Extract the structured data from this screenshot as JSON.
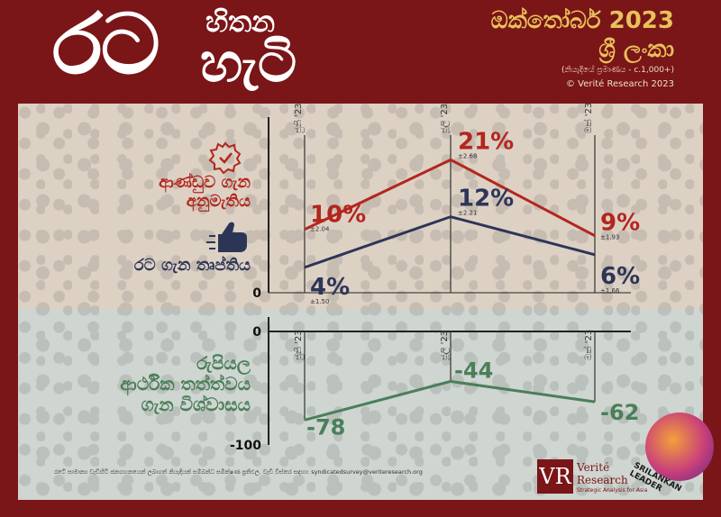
{
  "header": {
    "logo_main": "රට",
    "logo_top": "හිතන",
    "logo_bottom": "හැටි",
    "title": "ඔක්තෝබර් 2023",
    "country": "ශ්‍රී ලංකා",
    "sample": "(නියැදියේ ප්‍රමාණය - c.1,000+)",
    "copyright": "© Verité Research 2023"
  },
  "labels": {
    "approval": "ආණ්ඩුව ගැන අනුමැතිය",
    "approval_line1": "ආණ්ඩුව ගැන",
    "approval_line2": "අනුමැතිය",
    "satisfaction": "රට ගැන තෘප්තිය",
    "economic_line1": "රුපියල",
    "economic_line2": "ආර්ථික තත්ත්වය",
    "economic_line3": "ගැන විශ්වාසය"
  },
  "icons": {
    "approval": "checkmark-badge-icon",
    "satisfaction": "thumbs-up-icon"
  },
  "colors": {
    "approval": "#b3261e",
    "satisfaction": "#2d3557",
    "economic": "#4a7f5a",
    "brand": "#7a1518",
    "header_text": "#e8c15a"
  },
  "chart_data": [
    {
      "type": "line",
      "categories": [
        "ජුනි '23",
        "ජූලි '23",
        "ඔක් '23"
      ],
      "ylim": [
        0,
        25
      ],
      "axis_tick_labels": [
        "0"
      ],
      "series": [
        {
          "name": "ආණ්ඩුව ගැන අනුමැතිය",
          "values": [
            10,
            21,
            9
          ],
          "value_labels": [
            "10%",
            "21%",
            "9%"
          ],
          "error_labels": [
            "±2.04",
            "±2.68",
            "±1.93"
          ]
        },
        {
          "name": "රට ගැන තෘප්තිය",
          "values": [
            4,
            12,
            6
          ],
          "value_labels": [
            "4%",
            "12%",
            "6%"
          ],
          "error_labels": [
            "±1.50",
            "±2.21",
            "±1.66"
          ]
        }
      ]
    },
    {
      "type": "line",
      "categories": [
        "ජුනි '23",
        "ජූලි '23",
        "ඔක් '23"
      ],
      "ylim": [
        -100,
        0
      ],
      "axis_tick_labels": [
        "0",
        "-100"
      ],
      "series": [
        {
          "name": "ආර්ථික තත්ත්වය ගැන විශ්වාසය",
          "values": [
            -78,
            -44,
            -62
          ],
          "value_labels": [
            "-78",
            "-44",
            "-62"
          ]
        }
      ]
    }
  ],
  "footer": {
    "note": "රටේ සාමාන්‍ය වැඩිහිටි ජනගහනයෙන් ලබාගත් නියැදියක් සම්බන්ධ සමීක්ෂණ ප්‍රතිඵල. වැඩි විස්තර සඳහා: syndicatedsurvey@veriteresearch.org",
    "brand_mark": "VR",
    "brand_line1": "Verité",
    "brand_line2": "Research",
    "brand_tag": "Strategic Analysis for Asia",
    "watermark": "SRILANKAN LEADER"
  }
}
